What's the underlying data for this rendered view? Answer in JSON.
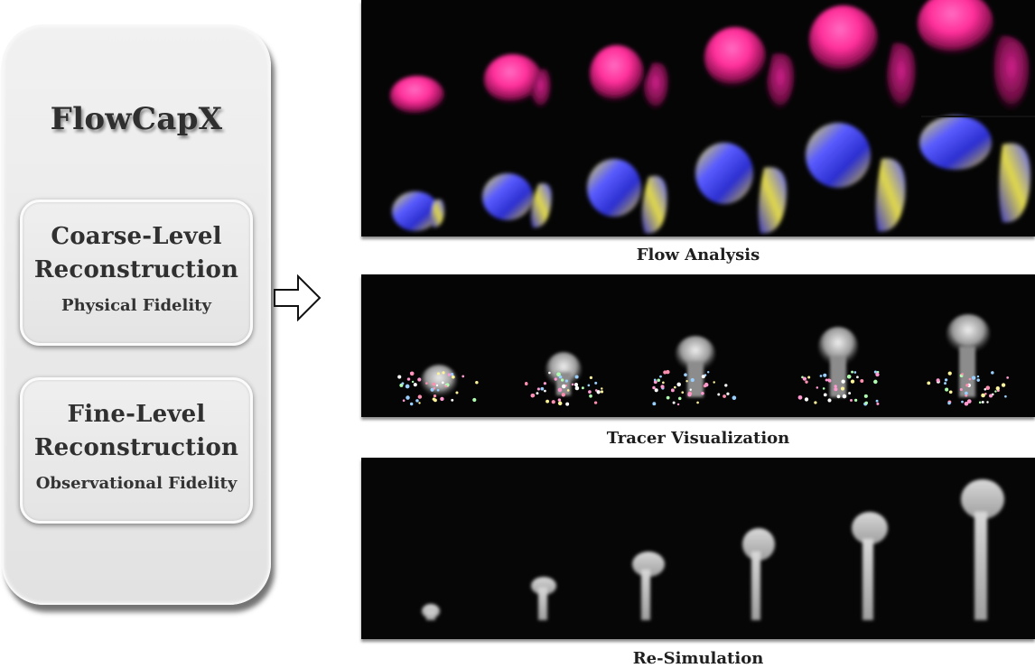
{
  "app": {
    "title": "FlowCapX"
  },
  "stages": [
    {
      "title_line1": "Coarse-Level",
      "title_line2": "Reconstruction",
      "caption": "Physical Fidelity"
    },
    {
      "title_line1": "Fine-Level",
      "title_line2": "Reconstruction",
      "caption": "Observational Fidelity"
    }
  ],
  "panels": {
    "flow_analysis": {
      "caption": "Flow Analysis"
    },
    "tracer_visualization": {
      "caption": "Tracer Visualization"
    },
    "re_simulation": {
      "caption": "Re-Simulation"
    }
  },
  "colors": {
    "panel_background": "#050505",
    "vorticity_magenta": "#ff2f9a",
    "velocity_blue": "#3d4cff",
    "velocity_yellow": "#e6e04a",
    "smoke_gray": "#cfcfcf"
  }
}
